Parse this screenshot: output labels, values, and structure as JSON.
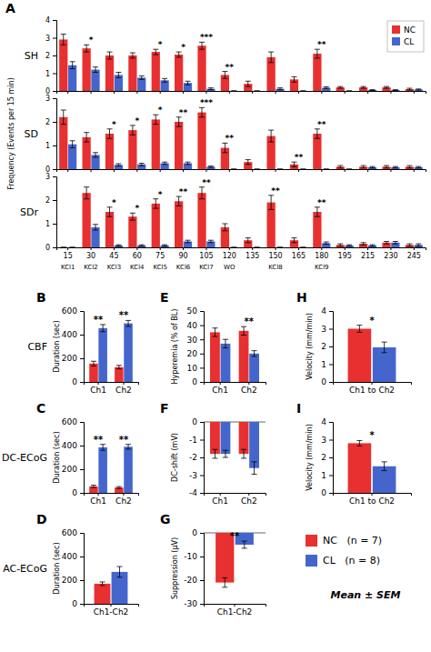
{
  "chart_data": [
    {
      "type": "bar",
      "panel": "A",
      "title": "SH",
      "categories": [
        "15",
        "30",
        "45",
        "60",
        "75",
        "90",
        "105",
        "120",
        "135",
        "150",
        "165",
        "180",
        "195",
        "215",
        "230",
        "245"
      ],
      "series": [
        {
          "name": "NC",
          "color": "#E83030",
          "values": [
            2.9,
            2.4,
            2.0,
            2.0,
            2.2,
            2.05,
            2.55,
            0.9,
            0.4,
            1.9,
            0.65,
            2.1,
            0.2,
            0.2,
            0.2,
            0.1
          ],
          "errors": [
            0.3,
            0.2,
            0.2,
            0.15,
            0.15,
            0.15,
            0.2,
            0.2,
            0.15,
            0.3,
            0.15,
            0.25,
            0.05,
            0.05,
            0.05,
            0.05
          ]
        },
        {
          "name": "CL",
          "color": "#4466CC",
          "values": [
            1.45,
            1.2,
            0.9,
            0.75,
            0.6,
            0.45,
            0.12,
            0.0,
            0.0,
            0.12,
            0.0,
            0.18,
            0.0,
            0.05,
            0.05,
            0.08
          ],
          "errors": [
            0.2,
            0.15,
            0.15,
            0.1,
            0.1,
            0.1,
            0.05,
            0.0,
            0.0,
            0.05,
            0.0,
            0.05,
            0.0,
            0.02,
            0.02,
            0.03
          ]
        }
      ],
      "significance": [
        null,
        "*",
        null,
        null,
        "*",
        "*",
        "***",
        "**",
        null,
        null,
        null,
        "**",
        null,
        null,
        null,
        null
      ],
      "ylim": [
        0,
        4
      ],
      "yticks": [
        0,
        1,
        2,
        3,
        4
      ],
      "legend": "upper right",
      "tick_labels": "y"
    },
    {
      "type": "bar",
      "title": "SD",
      "ylabel": "Frequency (Events per 15 min)",
      "categories": [
        "15",
        "30",
        "45",
        "60",
        "75",
        "90",
        "105",
        "120",
        "135",
        "150",
        "165",
        "180",
        "195",
        "215",
        "230",
        "245"
      ],
      "series": [
        {
          "name": "NC",
          "color": "#E83030",
          "values": [
            2.2,
            1.35,
            1.5,
            1.65,
            2.1,
            2.0,
            2.4,
            0.9,
            0.3,
            1.4,
            0.2,
            1.5,
            0.1,
            0.1,
            0.1,
            0.1
          ],
          "errors": [
            0.3,
            0.2,
            0.2,
            0.2,
            0.2,
            0.2,
            0.2,
            0.2,
            0.1,
            0.25,
            0.1,
            0.2,
            0.05,
            0.05,
            0.05,
            0.05
          ]
        },
        {
          "name": "CL",
          "color": "#4466CC",
          "values": [
            1.05,
            0.6,
            0.18,
            0.2,
            0.25,
            0.25,
            0.1,
            0.0,
            0.0,
            0.0,
            0.0,
            0.0,
            0.0,
            0.08,
            0.08,
            0.08
          ],
          "errors": [
            0.15,
            0.1,
            0.05,
            0.05,
            0.05,
            0.05,
            0.03,
            0.0,
            0.0,
            0.0,
            0.0,
            0.0,
            0.0,
            0.03,
            0.03,
            0.03
          ]
        }
      ],
      "significance": [
        null,
        null,
        "*",
        "*",
        "*",
        "**",
        "***",
        "**",
        null,
        null,
        "**",
        "**",
        null,
        null,
        null,
        null
      ],
      "ylim": [
        0,
        3
      ],
      "yticks": [
        0,
        1,
        2,
        3
      ],
      "tick_labels": "y"
    },
    {
      "type": "bar",
      "title": "SDr",
      "categories": [
        "15",
        "30",
        "45",
        "60",
        "75",
        "90",
        "105",
        "120",
        "135",
        "150",
        "165",
        "180",
        "195",
        "215",
        "230",
        "245"
      ],
      "x_sublabels": [
        "KCl1",
        "KCl2",
        "KCl3",
        "KCl4",
        "KCl5",
        "KCl6",
        "KCl7",
        "WO",
        null,
        "KCl8",
        null,
        "KCl9",
        null,
        null,
        null,
        null
      ],
      "series": [
        {
          "name": "NC",
          "color": "#E83030",
          "values": [
            0.0,
            2.3,
            1.5,
            1.3,
            1.85,
            1.95,
            2.3,
            0.85,
            0.3,
            1.9,
            0.3,
            1.5,
            0.1,
            0.15,
            0.2,
            0.1
          ],
          "errors": [
            0.0,
            0.25,
            0.2,
            0.15,
            0.2,
            0.2,
            0.25,
            0.15,
            0.1,
            0.3,
            0.1,
            0.2,
            0.05,
            0.05,
            0.05,
            0.05
          ]
        },
        {
          "name": "CL",
          "color": "#4466CC",
          "values": [
            0.0,
            0.85,
            0.08,
            0.08,
            0.08,
            0.25,
            0.25,
            0.0,
            0.0,
            0.0,
            0.0,
            0.18,
            0.08,
            0.08,
            0.2,
            0.1
          ],
          "errors": [
            0.0,
            0.12,
            0.03,
            0.03,
            0.03,
            0.05,
            0.05,
            0.0,
            0.0,
            0.0,
            0.0,
            0.05,
            0.03,
            0.03,
            0.05,
            0.05
          ]
        }
      ],
      "significance": [
        null,
        null,
        "*",
        "*",
        "*",
        "**",
        "**",
        null,
        null,
        "**",
        null,
        "**",
        null,
        null,
        null,
        null
      ],
      "ylim": [
        0,
        3
      ],
      "yticks": [
        0,
        1,
        2,
        3
      ]
    },
    {
      "type": "bar",
      "panel": "B",
      "title": "CBF",
      "ylabel": "Duration (sec)",
      "categories": [
        "Ch1",
        "Ch2"
      ],
      "series": [
        {
          "name": "NC",
          "color": "#E83030",
          "values": [
            155,
            125
          ],
          "errors": [
            20,
            15
          ]
        },
        {
          "name": "CL",
          "color": "#4466CC",
          "values": [
            455,
            495
          ],
          "errors": [
            30,
            25
          ]
        }
      ],
      "significance": [
        "**",
        "**"
      ],
      "ylim": [
        0,
        600
      ],
      "yticks": [
        0,
        200,
        400,
        600
      ]
    },
    {
      "type": "bar",
      "panel": "C",
      "title": "DC-ECoG",
      "ylabel": "Duration (sec)",
      "categories": [
        "Ch1",
        "Ch2"
      ],
      "series": [
        {
          "name": "NC",
          "color": "#E83030",
          "values": [
            55,
            45
          ],
          "errors": [
            10,
            8
          ]
        },
        {
          "name": "CL",
          "color": "#4466CC",
          "values": [
            385,
            390
          ],
          "errors": [
            25,
            20
          ]
        }
      ],
      "significance": [
        "**",
        "**"
      ],
      "ylim": [
        0,
        600
      ],
      "yticks": [
        0,
        200,
        400,
        600
      ]
    },
    {
      "type": "bar",
      "panel": "D",
      "title": "AC-ECoG",
      "ylabel": "Duration (sec)",
      "categories": [
        "Ch1-Ch2"
      ],
      "series": [
        {
          "name": "NC",
          "color": "#E83030",
          "values": [
            170
          ],
          "errors": [
            15
          ]
        },
        {
          "name": "CL",
          "color": "#4466CC",
          "values": [
            270
          ],
          "errors": [
            45
          ]
        }
      ],
      "ylim": [
        0,
        600
      ],
      "yticks": [
        0,
        200,
        400,
        600
      ]
    },
    {
      "type": "bar",
      "panel": "E",
      "ylabel": "Hyperemia (% of BL)",
      "categories": [
        "Ch1",
        "Ch2"
      ],
      "series": [
        {
          "name": "NC",
          "color": "#E83030",
          "values": [
            35,
            36
          ],
          "errors": [
            3,
            3
          ]
        },
        {
          "name": "CL",
          "color": "#4466CC",
          "values": [
            27,
            20
          ],
          "errors": [
            3,
            2
          ]
        }
      ],
      "significance": [
        null,
        "**"
      ],
      "ylim": [
        0,
        50
      ],
      "yticks": [
        0,
        10,
        20,
        30,
        40,
        50
      ]
    },
    {
      "type": "bar",
      "panel": "F",
      "ylabel": "DC-shift (mV)",
      "categories": [
        "Ch1",
        "Ch2"
      ],
      "series": [
        {
          "name": "NC",
          "color": "#E83030",
          "values": [
            -1.8,
            -1.8
          ],
          "errors": [
            0.25,
            0.25
          ]
        },
        {
          "name": "CL",
          "color": "#4466CC",
          "values": [
            -1.8,
            -2.6
          ],
          "errors": [
            0.2,
            0.35
          ]
        }
      ],
      "ylim": [
        -4,
        0
      ],
      "yticks": [
        -4,
        -3,
        -2,
        -1,
        0
      ]
    },
    {
      "type": "bar",
      "panel": "G",
      "ylabel": "Suppression (μV)",
      "categories": [
        "Ch1-Ch2"
      ],
      "series": [
        {
          "name": "NC",
          "color": "#E83030",
          "values": [
            -21
          ],
          "errors": [
            2
          ]
        },
        {
          "name": "CL",
          "color": "#4466CC",
          "values": [
            -5
          ],
          "errors": [
            1.5
          ]
        }
      ],
      "significance": [
        "**"
      ],
      "ylim": [
        -30,
        0
      ],
      "yticks": [
        -30,
        -20,
        -10,
        0
      ]
    },
    {
      "type": "bar",
      "panel": "H",
      "ylabel": "Velocity (mm/min)",
      "categories": [
        "Ch1 to Ch2"
      ],
      "series": [
        {
          "name": "NC",
          "color": "#E83030",
          "values": [
            3.0
          ],
          "errors": [
            0.2
          ]
        },
        {
          "name": "CL",
          "color": "#4466CC",
          "values": [
            1.95
          ],
          "errors": [
            0.3
          ]
        }
      ],
      "significance": [
        "*"
      ],
      "ylim": [
        0,
        4
      ],
      "yticks": [
        0,
        1,
        2,
        3,
        4
      ]
    },
    {
      "type": "bar",
      "panel": "I",
      "ylabel": "Velocity (mm/min)",
      "categories": [
        "Ch1 to Ch2"
      ],
      "series": [
        {
          "name": "NC",
          "color": "#E83030",
          "values": [
            2.8
          ],
          "errors": [
            0.15
          ]
        },
        {
          "name": "CL",
          "color": "#4466CC",
          "values": [
            1.5
          ],
          "errors": [
            0.25
          ]
        }
      ],
      "significance": [
        "*"
      ],
      "ylim": [
        0,
        4
      ],
      "yticks": [
        0,
        1,
        2,
        3,
        4
      ]
    },
    {
      "type": "legend",
      "series": [
        {
          "name": "NC   (n = 7)",
          "color": "#E83030"
        },
        {
          "name": "CL   (n = 8)",
          "color": "#4466CC"
        }
      ],
      "annotations": [
        "Mean ± SEM"
      ]
    }
  ]
}
